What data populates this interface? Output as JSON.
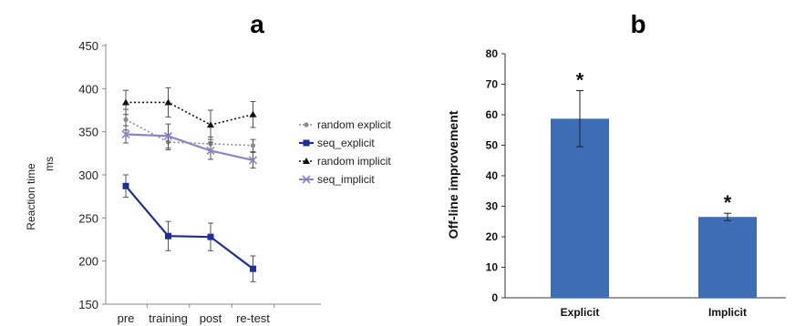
{
  "chart_data": [
    {
      "type": "line",
      "panel_label": "a",
      "ylabel": "Reaction time ms",
      "ylabel_lines": [
        "Reaction time",
        "ms"
      ],
      "xlabel": "",
      "categories": [
        "pre",
        "training",
        "post",
        "re-test"
      ],
      "ylim": [
        150,
        450
      ],
      "yticks": [
        150,
        200,
        250,
        300,
        350,
        400,
        450
      ],
      "grid": false,
      "legend_position": "right",
      "series": [
        {
          "name": "random explicit",
          "color": "#8c8c8c",
          "marker": "circle",
          "line": "dotted",
          "values": [
            364,
            338,
            336,
            334
          ],
          "errors": [
            12,
            9,
            8,
            7
          ]
        },
        {
          "name": "seq_explicit",
          "color": "#1f2f9a",
          "marker": "square",
          "line": "solid",
          "values": [
            287,
            229,
            228,
            191
          ],
          "errors": [
            13,
            17,
            16,
            15
          ]
        },
        {
          "name": "random implicit",
          "color": "#111111",
          "marker": "triangle",
          "line": "dotted",
          "values": [
            384,
            384,
            358,
            370
          ],
          "errors": [
            14,
            17,
            17,
            15
          ]
        },
        {
          "name": "seq_implicit",
          "color": "#8b86c8",
          "marker": "x",
          "line": "solid",
          "values": [
            347,
            345,
            328,
            317
          ],
          "errors": [
            10,
            14,
            10,
            9
          ]
        }
      ]
    },
    {
      "type": "bar",
      "panel_label": "b",
      "ylabel": "Off-line improvement",
      "xlabel": "",
      "categories": [
        "Explicit",
        "Implicit"
      ],
      "values": [
        58.7,
        26.5
      ],
      "errors": [
        9.2,
        1.2
      ],
      "annotations": [
        "*",
        "*"
      ],
      "ylim": [
        0,
        80
      ],
      "yticks": [
        0,
        10,
        20,
        30,
        40,
        50,
        60,
        70,
        80
      ],
      "grid": false,
      "bar_color": "#3e6db5"
    }
  ]
}
